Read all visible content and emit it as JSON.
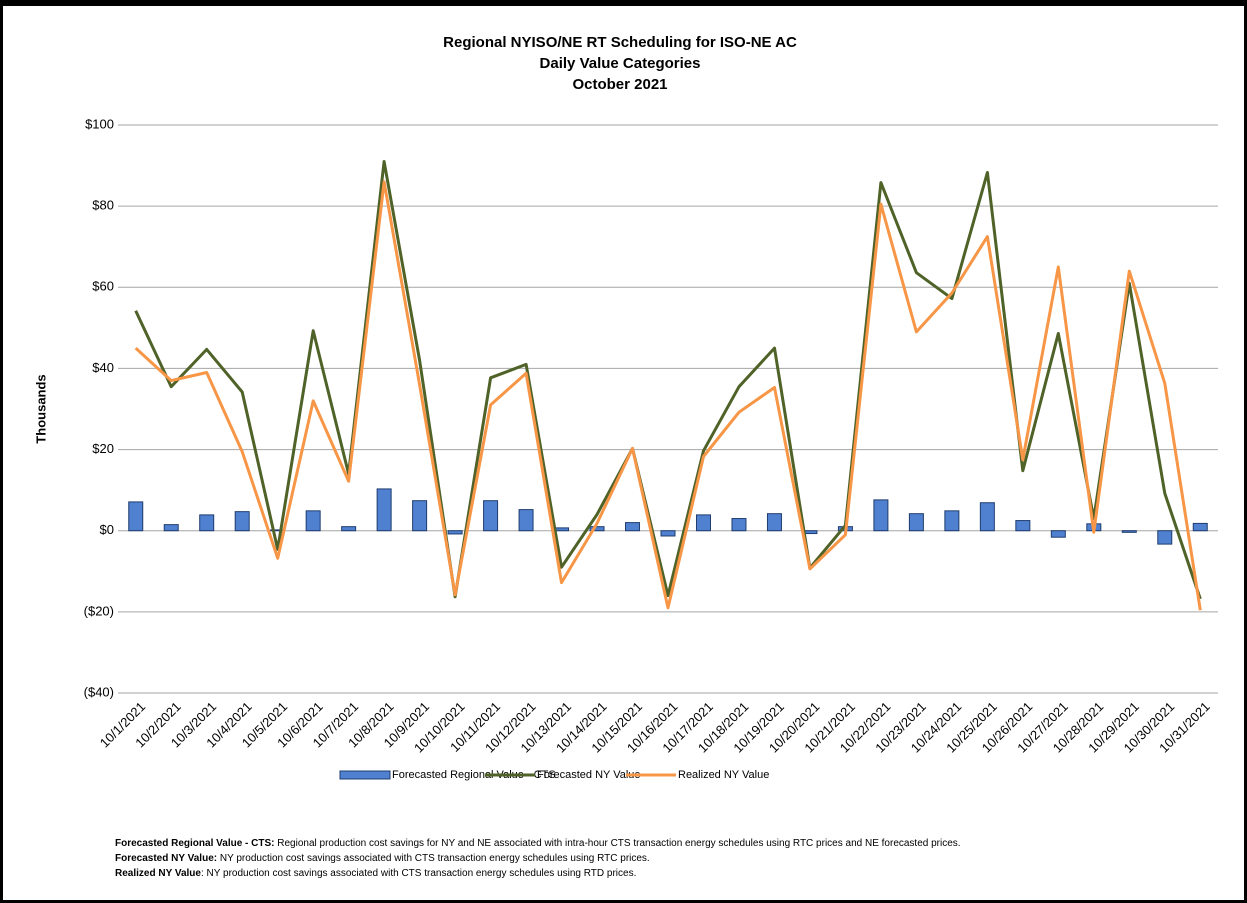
{
  "chart_data": {
    "type": "combo",
    "title_lines": [
      "Regional NYISO/NE RT Scheduling for ISO-NE AC",
      "Daily Value Categories",
      "October 2021"
    ],
    "y_label": "Thousands",
    "categories": [
      "10/1/2021",
      "10/2/2021",
      "10/3/2021",
      "10/4/2021",
      "10/5/2021",
      "10/6/2021",
      "10/7/2021",
      "10/8/2021",
      "10/9/2021",
      "10/10/2021",
      "10/11/2021",
      "10/12/2021",
      "10/13/2021",
      "10/14/2021",
      "10/15/2021",
      "10/16/2021",
      "10/17/2021",
      "10/18/2021",
      "10/19/2021",
      "10/20/2021",
      "10/21/2021",
      "10/22/2021",
      "10/23/2021",
      "10/24/2021",
      "10/25/2021",
      "10/26/2021",
      "10/27/2021",
      "10/28/2021",
      "10/29/2021",
      "10/30/2021",
      "10/31/2021"
    ],
    "series": [
      {
        "name": "Forecasted Regional Value - CTS",
        "type": "bar",
        "color": "#4f81d0",
        "edge": "#1f3c6e",
        "values": [
          7.1,
          1.5,
          3.9,
          4.7,
          0.2,
          4.9,
          1.0,
          10.3,
          7.4,
          -0.8,
          7.4,
          5.2,
          0.7,
          1.0,
          2.0,
          -1.3,
          3.9,
          3.0,
          4.2,
          -0.7,
          1.0,
          7.6,
          4.2,
          4.9,
          6.9,
          2.5,
          -1.6,
          1.7,
          -0.4,
          -3.3,
          1.8
        ]
      },
      {
        "name": "Forecasted NY Value",
        "type": "line",
        "color": "#4f6228",
        "values": [
          54.2,
          35.5,
          44.7,
          34.2,
          -4.6,
          49.3,
          14.0,
          91.0,
          42.0,
          -16.3,
          37.7,
          41.0,
          -9.0,
          4.0,
          20.3,
          -16.0,
          19.7,
          35.5,
          45.0,
          -9.2,
          1.3,
          85.8,
          63.6,
          57.2,
          88.3,
          14.8,
          48.6,
          3.0,
          61.0,
          9.2,
          -16.8
        ]
      },
      {
        "name": "Realized NY Value",
        "type": "line",
        "color": "#f79646",
        "values": [
          45.0,
          37.0,
          39.0,
          19.5,
          -6.8,
          32.0,
          12.2,
          86.0,
          36.0,
          -15.8,
          31.0,
          38.8,
          -12.8,
          1.8,
          20.3,
          -19.0,
          18.3,
          29.2,
          35.3,
          -9.4,
          -1.0,
          80.5,
          49.0,
          58.6,
          72.5,
          17.5,
          65.0,
          -0.4,
          64.0,
          36.3,
          -19.6
        ]
      }
    ],
    "ylim": [
      -40,
      100
    ],
    "yticks": [
      {
        "value": -40,
        "label": "($40)"
      },
      {
        "value": -20,
        "label": "($20)"
      },
      {
        "value": 0,
        "label": "$0"
      },
      {
        "value": 20,
        "label": "$20"
      },
      {
        "value": 40,
        "label": "$40"
      },
      {
        "value": 60,
        "label": "$60"
      },
      {
        "value": 80,
        "label": "$80"
      },
      {
        "value": 100,
        "label": "$100"
      }
    ],
    "negative_tick_color": "#ff0000",
    "grid": true,
    "legend": "bottom",
    "notes": [
      {
        "term": "Forecasted Regional Value - CTS:",
        "text": " Regional production cost savings for NY and NE associated with intra-hour CTS transaction energy schedules using RTC prices and NE forecasted prices."
      },
      {
        "term": "Forecasted NY Value:",
        "text": " NY production cost savings associated with CTS transaction energy schedules using RTC prices."
      },
      {
        "term": "Realized NY Value",
        "text": ": NY production cost savings associated with CTS transaction energy schedules using RTD prices."
      }
    ]
  }
}
